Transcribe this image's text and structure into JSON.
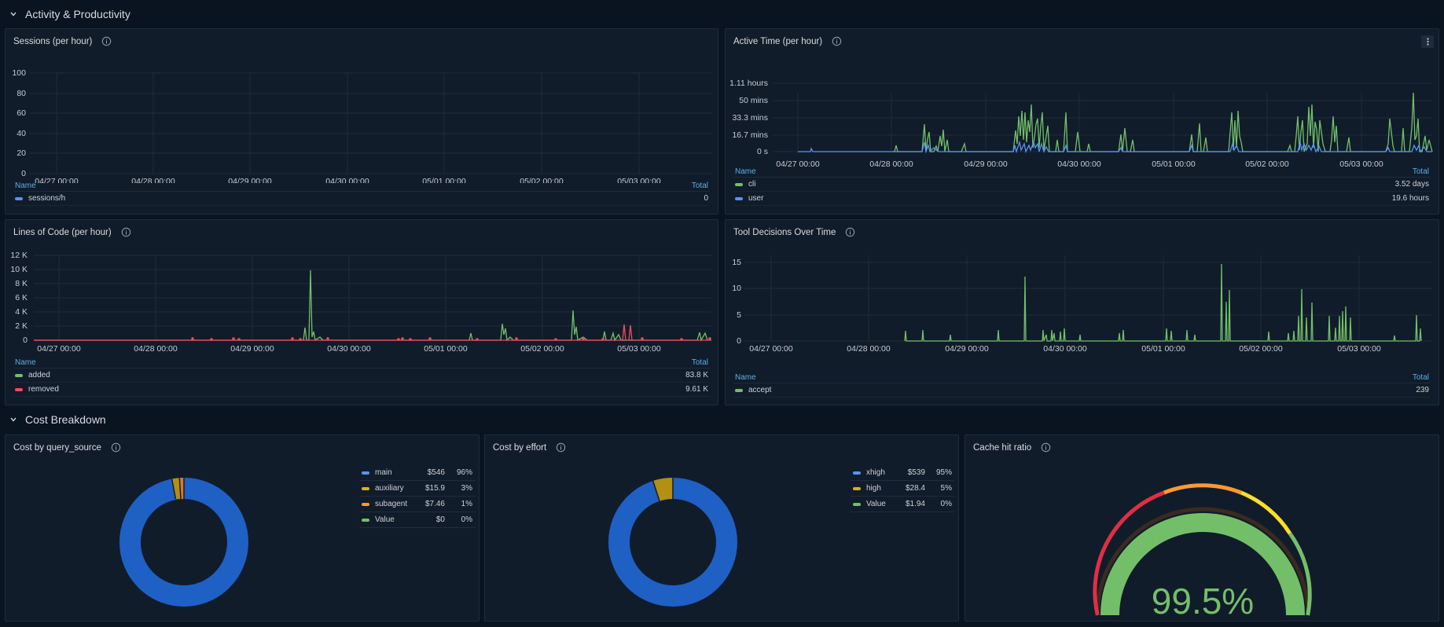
{
  "rows": {
    "activity": {
      "title": "Activity & Productivity"
    },
    "cost": {
      "title": "Cost Breakdown"
    }
  },
  "colors": {
    "green": "#73bf69",
    "blue": "#5794f2",
    "red": "#f2495c",
    "yellow": "#d4b11e",
    "orange": "#ff9830",
    "accent": "#5ab0e8"
  },
  "x_ticks": [
    "04/27 00:00",
    "04/28 00:00",
    "04/29 00:00",
    "04/30 00:00",
    "05/01 00:00",
    "05/02 00:00",
    "05/03 00:00"
  ],
  "legend_header": {
    "name": "Name",
    "total": "Total"
  },
  "panels": {
    "sessions": {
      "title": "Sessions (per hour)",
      "y_ticks": [
        "0",
        "20",
        "40",
        "60",
        "80",
        "100"
      ],
      "legend": [
        {
          "name": "sessions/h",
          "total": "0"
        }
      ]
    },
    "active_time": {
      "title": "Active Time (per hour)",
      "menu_icon": "kebab-menu-icon",
      "y_ticks": [
        "0 s",
        "16.7 mins",
        "33.3 mins",
        "50 mins",
        "1.11 hours"
      ],
      "legend": [
        {
          "name": "cli",
          "total": "3.52 days"
        },
        {
          "name": "user",
          "total": "19.6 hours"
        }
      ]
    },
    "loc": {
      "title": "Lines of Code (per hour)",
      "y_ticks": [
        "0",
        "2 K",
        "4 K",
        "6 K",
        "8 K",
        "10 K",
        "12 K"
      ],
      "legend": [
        {
          "name": "added",
          "total": "83.8 K"
        },
        {
          "name": "removed",
          "total": "9.61 K"
        }
      ]
    },
    "tool": {
      "title": "Tool Decisions Over Time",
      "y_ticks": [
        "0",
        "5",
        "10",
        "15"
      ],
      "legend": [
        {
          "name": "accept",
          "total": "239"
        }
      ]
    },
    "cost_query": {
      "title": "Cost by query_source",
      "items": [
        {
          "name": "main",
          "value": "$546",
          "pct": "96%"
        },
        {
          "name": "auxiliary",
          "value": "$15.9",
          "pct": "3%"
        },
        {
          "name": "subagent",
          "value": "$7.46",
          "pct": "1%"
        },
        {
          "name": "Value",
          "value": "$0",
          "pct": "0%"
        }
      ]
    },
    "cost_effort": {
      "title": "Cost by effort",
      "items": [
        {
          "name": "xhigh",
          "value": "$539",
          "pct": "95%"
        },
        {
          "name": "high",
          "value": "$28.4",
          "pct": "5%"
        },
        {
          "name": "Value",
          "value": "$1.94",
          "pct": "0%"
        }
      ]
    },
    "cache": {
      "title": "Cache hit ratio",
      "value_label": "99.5%",
      "value": 99.5
    }
  }
}
